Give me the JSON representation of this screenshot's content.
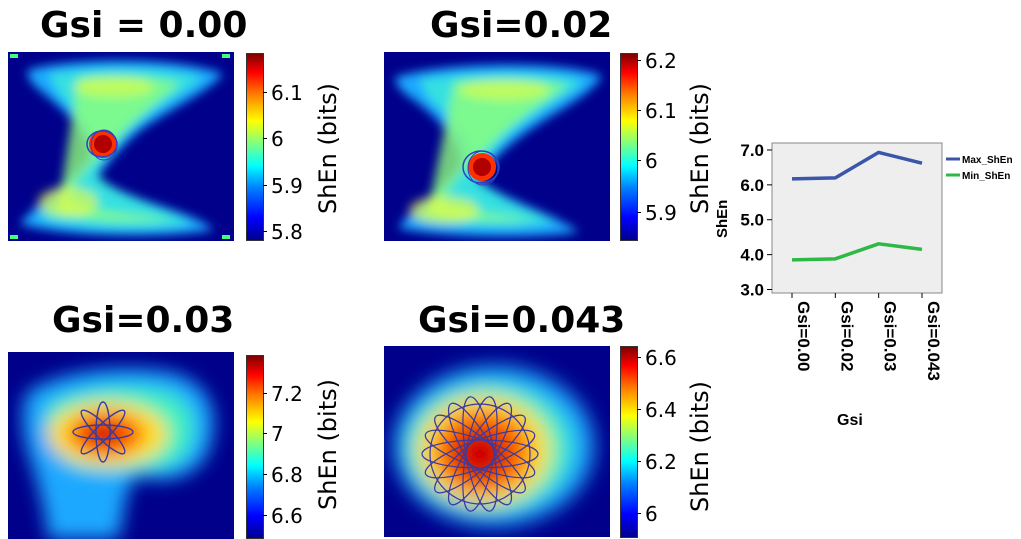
{
  "panels": [
    {
      "title": "Gsi = 0.00",
      "colorbar": {
        "label": "ShEn (bits)",
        "ticks": [
          "6.1",
          "6",
          "5.9",
          "5.8"
        ]
      }
    },
    {
      "title": "Gsi=0.02",
      "colorbar": {
        "label": "ShEn (bits)",
        "ticks": [
          "6.2",
          "6.1",
          "6",
          "5.9"
        ]
      }
    },
    {
      "title": "Gsi=0.03",
      "colorbar": {
        "label": "ShEn (bits)",
        "ticks": [
          "7.2",
          "7",
          "6.8",
          "6.6"
        ]
      }
    },
    {
      "title": "Gsi=0.043",
      "colorbar": {
        "label": "ShEn (bits)",
        "ticks": [
          "6.6",
          "6.4",
          "6.2",
          "6"
        ]
      }
    }
  ],
  "colors": {
    "max_series": "#3a56a8",
    "min_series": "#2eb846",
    "plot_bg": "#eeeeee",
    "map_bg": "#00008b"
  },
  "chart_data": {
    "type": "line",
    "categories": [
      "Gsi=0.00",
      "Gsi=0.02",
      "Gsi=0.03",
      "Gsi=0.043"
    ],
    "series": [
      {
        "name": "Max_ShEn",
        "values": [
          6.17,
          6.2,
          6.93,
          6.62
        ]
      },
      {
        "name": "Min_ShEn",
        "values": [
          3.85,
          3.88,
          4.31,
          4.15
        ]
      }
    ],
    "xlabel": "Gsi",
    "ylabel": "ShEn",
    "ylim": [
      2.9,
      7.2
    ],
    "yticks": [
      "3.0",
      "4.0",
      "5.0",
      "6.0",
      "7.0"
    ],
    "grid": false,
    "legend_position": "right"
  }
}
